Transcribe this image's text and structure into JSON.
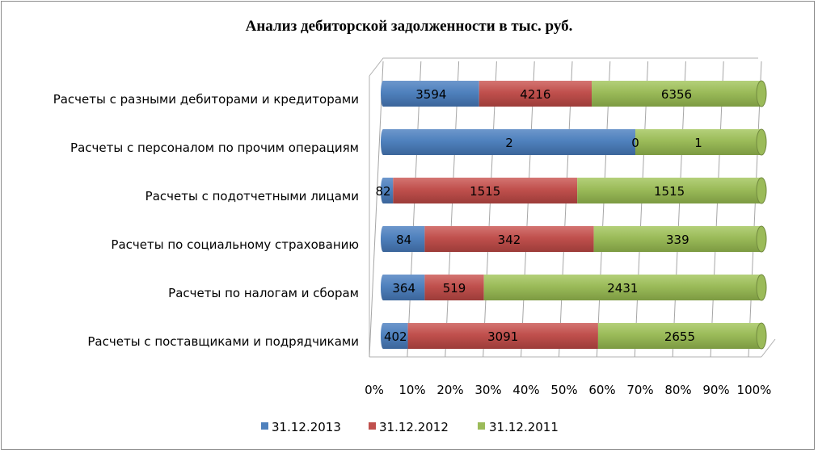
{
  "chart_data": {
    "type": "bar",
    "orientation": "horizontal",
    "stacked": "percent",
    "three_d": true,
    "title": "Анализ дебиторской задолженности в тыс. руб.",
    "categories": [
      "Расчеты с разными дебиторами и кредиторами",
      "Расчеты с персоналом по прочим операциям",
      "Расчеты с подотчетными лицами",
      "Расчеты по социальному страхованию",
      "Расчеты по налогам и сборам",
      "Расчеты с поставщиками и подрядчиками"
    ],
    "series": [
      {
        "name": "31.12.2013",
        "color": "#4a7ebb",
        "values": [
          3594,
          2,
          82,
          84,
          364,
          402
        ]
      },
      {
        "name": "31.12.2012",
        "color": "#c0504d",
        "values": [
          4216,
          0,
          1515,
          342,
          519,
          3091
        ]
      },
      {
        "name": "31.12.2011",
        "color": "#9bbb59",
        "values": [
          6356,
          1,
          1515,
          339,
          2431,
          2655
        ]
      }
    ],
    "x_ticks": [
      "0%",
      "10%",
      "20%",
      "30%",
      "40%",
      "50%",
      "60%",
      "70%",
      "80%",
      "90%",
      "100%"
    ],
    "xlim": [
      0,
      100
    ],
    "grid": true,
    "legend_position": "bottom"
  }
}
